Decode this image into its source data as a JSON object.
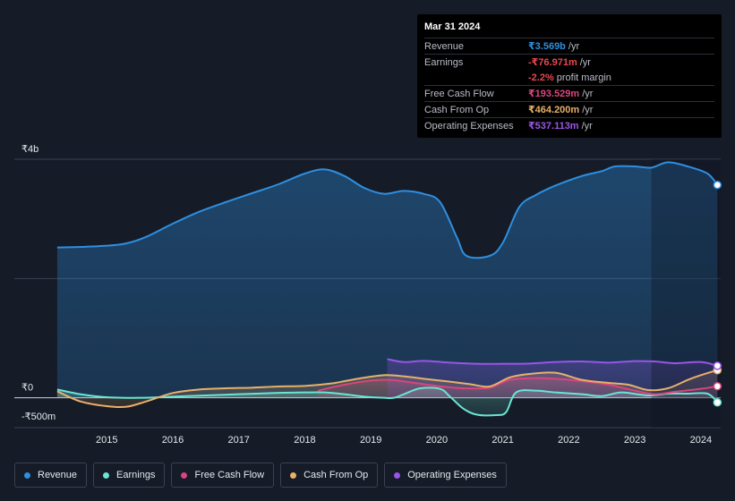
{
  "chart_data": {
    "type": "area",
    "title": "",
    "xlabel": "",
    "ylabel": "",
    "ylim": [
      -500,
      4000
    ],
    "y_ticks": [
      {
        "value": 4000,
        "label": "₹4b"
      },
      {
        "value": 0,
        "label": "₹0"
      },
      {
        "value": -500,
        "label": "-₹500m"
      }
    ],
    "x_ticks": [
      {
        "value": 2015,
        "label": "2015"
      },
      {
        "value": 2016,
        "label": "2016"
      },
      {
        "value": 2017,
        "label": "2017"
      },
      {
        "value": 2018,
        "label": "2018"
      },
      {
        "value": 2019,
        "label": "2019"
      },
      {
        "value": 2020,
        "label": "2020"
      },
      {
        "value": 2021,
        "label": "2021"
      },
      {
        "value": 2022,
        "label": "2022"
      },
      {
        "value": 2023,
        "label": "2023"
      },
      {
        "value": 2024,
        "label": "2024"
      }
    ],
    "xlim": [
      2013.6,
      2024.3
    ],
    "highlight_from": 2023.25,
    "series": [
      {
        "name": "Revenue",
        "color": "#2e8fe0",
        "points": [
          [
            2014.25,
            2520
          ],
          [
            2014.6,
            2530
          ],
          [
            2015.0,
            2550
          ],
          [
            2015.3,
            2590
          ],
          [
            2015.6,
            2700
          ],
          [
            2016.0,
            2920
          ],
          [
            2016.4,
            3120
          ],
          [
            2016.8,
            3280
          ],
          [
            2017.2,
            3430
          ],
          [
            2017.6,
            3580
          ],
          [
            2018.0,
            3760
          ],
          [
            2018.3,
            3830
          ],
          [
            2018.6,
            3720
          ],
          [
            2018.9,
            3520
          ],
          [
            2019.2,
            3420
          ],
          [
            2019.5,
            3470
          ],
          [
            2019.8,
            3420
          ],
          [
            2020.05,
            3280
          ],
          [
            2020.3,
            2700
          ],
          [
            2020.45,
            2380
          ],
          [
            2020.8,
            2380
          ],
          [
            2021.0,
            2600
          ],
          [
            2021.25,
            3200
          ],
          [
            2021.5,
            3400
          ],
          [
            2021.8,
            3560
          ],
          [
            2022.2,
            3720
          ],
          [
            2022.5,
            3800
          ],
          [
            2022.7,
            3880
          ],
          [
            2023.0,
            3880
          ],
          [
            2023.25,
            3860
          ],
          [
            2023.5,
            3950
          ],
          [
            2023.8,
            3880
          ],
          [
            2024.1,
            3760
          ],
          [
            2024.25,
            3569
          ]
        ]
      },
      {
        "name": "Earnings",
        "color": "#6be4d3",
        "points": [
          [
            2014.25,
            140
          ],
          [
            2014.6,
            60
          ],
          [
            2015.0,
            10
          ],
          [
            2015.5,
            0
          ],
          [
            2016.0,
            20
          ],
          [
            2016.5,
            40
          ],
          [
            2017.0,
            60
          ],
          [
            2017.5,
            80
          ],
          [
            2018.0,
            90
          ],
          [
            2018.3,
            90
          ],
          [
            2018.6,
            60
          ],
          [
            2018.9,
            20
          ],
          [
            2019.2,
            0
          ],
          [
            2019.35,
            0
          ],
          [
            2019.5,
            60
          ],
          [
            2019.75,
            160
          ],
          [
            2020.05,
            150
          ],
          [
            2020.2,
            20
          ],
          [
            2020.4,
            -180
          ],
          [
            2020.6,
            -280
          ],
          [
            2020.9,
            -290
          ],
          [
            2021.05,
            -240
          ],
          [
            2021.2,
            90
          ],
          [
            2021.5,
            120
          ],
          [
            2021.8,
            90
          ],
          [
            2022.2,
            60
          ],
          [
            2022.5,
            30
          ],
          [
            2022.8,
            90
          ],
          [
            2023.2,
            40
          ],
          [
            2023.5,
            70
          ],
          [
            2023.8,
            70
          ],
          [
            2024.1,
            70
          ],
          [
            2024.25,
            -77
          ]
        ]
      },
      {
        "name": "Free Cash Flow",
        "color": "#d9457e",
        "points": [
          [
            2018.2,
            120
          ],
          [
            2018.6,
            220
          ],
          [
            2019.0,
            290
          ],
          [
            2019.3,
            300
          ],
          [
            2019.6,
            260
          ],
          [
            2020.0,
            200
          ],
          [
            2020.4,
            160
          ],
          [
            2020.8,
            170
          ],
          [
            2021.1,
            300
          ],
          [
            2021.5,
            330
          ],
          [
            2021.8,
            320
          ],
          [
            2022.2,
            280
          ],
          [
            2022.6,
            220
          ],
          [
            2023.0,
            120
          ],
          [
            2023.3,
            60
          ],
          [
            2023.6,
            100
          ],
          [
            2024.0,
            150
          ],
          [
            2024.25,
            193.5
          ]
        ]
      },
      {
        "name": "Cash From Op",
        "color": "#e8b06a",
        "points": [
          [
            2014.25,
            110
          ],
          [
            2014.6,
            -60
          ],
          [
            2015.0,
            -140
          ],
          [
            2015.3,
            -150
          ],
          [
            2015.6,
            -60
          ],
          [
            2016.0,
            80
          ],
          [
            2016.4,
            140
          ],
          [
            2016.8,
            160
          ],
          [
            2017.2,
            170
          ],
          [
            2017.6,
            190
          ],
          [
            2018.0,
            200
          ],
          [
            2018.4,
            240
          ],
          [
            2018.8,
            320
          ],
          [
            2019.2,
            380
          ],
          [
            2019.5,
            360
          ],
          [
            2019.8,
            320
          ],
          [
            2020.2,
            270
          ],
          [
            2020.5,
            230
          ],
          [
            2020.8,
            190
          ],
          [
            2021.1,
            340
          ],
          [
            2021.4,
            400
          ],
          [
            2021.8,
            420
          ],
          [
            2022.2,
            300
          ],
          [
            2022.6,
            250
          ],
          [
            2022.9,
            220
          ],
          [
            2023.2,
            130
          ],
          [
            2023.5,
            160
          ],
          [
            2023.8,
            300
          ],
          [
            2024.0,
            380
          ],
          [
            2024.25,
            464.2
          ]
        ]
      },
      {
        "name": "Operating Expenses",
        "color": "#9a55e8",
        "points": [
          [
            2019.25,
            650
          ],
          [
            2019.5,
            600
          ],
          [
            2019.8,
            620
          ],
          [
            2020.2,
            590
          ],
          [
            2020.6,
            570
          ],
          [
            2021.0,
            570
          ],
          [
            2021.4,
            575
          ],
          [
            2021.8,
            600
          ],
          [
            2022.2,
            610
          ],
          [
            2022.6,
            590
          ],
          [
            2023.0,
            615
          ],
          [
            2023.3,
            610
          ],
          [
            2023.6,
            580
          ],
          [
            2024.0,
            600
          ],
          [
            2024.25,
            537.1
          ]
        ]
      }
    ]
  },
  "tooltip": {
    "date": "Mar 31 2024",
    "rows": [
      {
        "key": "Revenue",
        "value": "₹3.569b",
        "unit": "/yr",
        "color": "#2e8fe0"
      },
      {
        "key": "Earnings",
        "value": "-₹76.971m",
        "unit": "/yr",
        "color": "#e8484f"
      },
      {
        "key": "",
        "value": "-2.2%",
        "unit": "profit margin",
        "color": "#e8484f"
      },
      {
        "key": "Free Cash Flow",
        "value": "₹193.529m",
        "unit": "/yr",
        "color": "#d9457e"
      },
      {
        "key": "Cash From Op",
        "value": "₹464.200m",
        "unit": "/yr",
        "color": "#e8b06a"
      },
      {
        "key": "Operating Expenses",
        "value": "₹537.113m",
        "unit": "/yr",
        "color": "#9a55e8"
      }
    ]
  },
  "legend": [
    {
      "label": "Revenue",
      "color": "#2e8fe0"
    },
    {
      "label": "Earnings",
      "color": "#6be4d3"
    },
    {
      "label": "Free Cash Flow",
      "color": "#d9457e"
    },
    {
      "label": "Cash From Op",
      "color": "#e8b06a"
    },
    {
      "label": "Operating Expenses",
      "color": "#9a55e8"
    }
  ]
}
